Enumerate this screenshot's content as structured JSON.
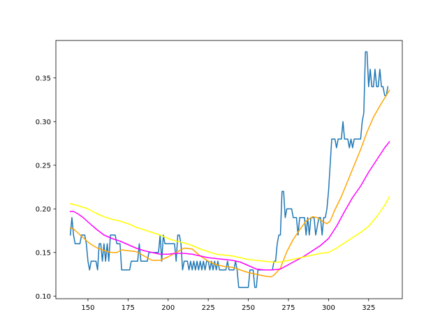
{
  "chart_data": {
    "type": "line",
    "title": "",
    "xlabel": "",
    "ylabel": "",
    "xlim": [
      130,
      346
    ],
    "ylim": [
      0.097,
      0.393
    ],
    "grid": false,
    "x_ticks": [
      150,
      175,
      200,
      225,
      250,
      275,
      300,
      325
    ],
    "y_ticks": [
      0.1,
      0.15,
      0.2,
      0.25,
      0.3,
      0.35
    ],
    "series": [
      {
        "color": "#1f77b4",
        "points": [
          [
            139,
            0.17
          ],
          [
            140,
            0.19
          ],
          [
            141,
            0.17
          ],
          [
            142,
            0.16
          ],
          [
            144,
            0.16
          ],
          [
            145,
            0.16
          ],
          [
            146,
            0.17
          ],
          [
            148,
            0.17
          ],
          [
            149,
            0.16
          ],
          [
            150,
            0.14
          ],
          [
            151,
            0.13
          ],
          [
            152,
            0.14
          ],
          [
            154,
            0.14
          ],
          [
            155,
            0.14
          ],
          [
            156,
            0.13
          ],
          [
            157,
            0.16
          ],
          [
            158,
            0.16
          ],
          [
            159,
            0.14
          ],
          [
            160,
            0.16
          ],
          [
            161,
            0.14
          ],
          [
            162,
            0.16
          ],
          [
            163,
            0.14
          ],
          [
            164,
            0.17
          ],
          [
            166,
            0.17
          ],
          [
            167,
            0.17
          ],
          [
            168,
            0.16
          ],
          [
            170,
            0.16
          ],
          [
            171,
            0.13
          ],
          [
            175,
            0.13
          ],
          [
            176,
            0.13
          ],
          [
            177,
            0.14
          ],
          [
            181,
            0.14
          ],
          [
            182,
            0.16
          ],
          [
            183,
            0.14
          ],
          [
            186,
            0.14
          ],
          [
            187,
            0.14
          ],
          [
            188,
            0.15
          ],
          [
            192,
            0.15
          ],
          [
            194,
            0.15
          ],
          [
            195,
            0.17
          ],
          [
            196,
            0.14
          ],
          [
            197,
            0.17
          ],
          [
            198,
            0.16
          ],
          [
            204,
            0.16
          ],
          [
            205,
            0.14
          ],
          [
            206,
            0.17
          ],
          [
            207,
            0.17
          ],
          [
            208,
            0.16
          ],
          [
            209,
            0.13
          ],
          [
            210,
            0.14
          ],
          [
            212,
            0.14
          ],
          [
            213,
            0.13
          ],
          [
            214,
            0.14
          ],
          [
            215,
            0.13
          ],
          [
            216,
            0.14
          ],
          [
            217,
            0.13
          ],
          [
            218,
            0.14
          ],
          [
            219,
            0.13
          ],
          [
            220,
            0.14
          ],
          [
            221,
            0.13
          ],
          [
            222,
            0.14
          ],
          [
            223,
            0.13
          ],
          [
            224,
            0.14
          ],
          [
            225,
            0.14
          ],
          [
            226,
            0.13
          ],
          [
            227,
            0.14
          ],
          [
            228,
            0.13
          ],
          [
            229,
            0.14
          ],
          [
            230,
            0.13
          ],
          [
            231,
            0.14
          ],
          [
            232,
            0.13
          ],
          [
            236,
            0.13
          ],
          [
            237,
            0.14
          ],
          [
            238,
            0.13
          ],
          [
            241,
            0.13
          ],
          [
            242,
            0.14
          ],
          [
            243,
            0.13
          ],
          [
            244,
            0.11
          ],
          [
            250,
            0.11
          ],
          [
            251,
            0.13
          ],
          [
            253,
            0.13
          ],
          [
            254,
            0.11
          ],
          [
            255,
            0.11
          ],
          [
            256,
            0.13
          ],
          [
            265,
            0.13
          ],
          [
            266,
            0.14
          ],
          [
            267,
            0.14
          ],
          [
            268,
            0.16
          ],
          [
            269,
            0.17
          ],
          [
            270,
            0.17
          ],
          [
            271,
            0.22
          ],
          [
            272,
            0.22
          ],
          [
            273,
            0.19
          ],
          [
            274,
            0.2
          ],
          [
            277,
            0.2
          ],
          [
            278,
            0.19
          ],
          [
            280,
            0.19
          ],
          [
            281,
            0.17
          ],
          [
            282,
            0.19
          ],
          [
            285,
            0.19
          ],
          [
            286,
            0.17
          ],
          [
            287,
            0.19
          ],
          [
            288,
            0.17
          ],
          [
            289,
            0.19
          ],
          [
            291,
            0.19
          ],
          [
            292,
            0.17
          ],
          [
            294,
            0.19
          ],
          [
            295,
            0.19
          ],
          [
            296,
            0.17
          ],
          [
            297,
            0.19
          ],
          [
            298,
            0.19
          ],
          [
            299,
            0.2
          ],
          [
            300,
            0.22
          ],
          [
            301,
            0.25
          ],
          [
            302,
            0.28
          ],
          [
            304,
            0.28
          ],
          [
            305,
            0.27
          ],
          [
            306,
            0.28
          ],
          [
            307,
            0.28
          ],
          [
            308,
            0.28
          ],
          [
            309,
            0.3
          ],
          [
            310,
            0.28
          ],
          [
            312,
            0.28
          ],
          [
            313,
            0.27
          ],
          [
            314,
            0.28
          ],
          [
            315,
            0.27
          ],
          [
            316,
            0.28
          ],
          [
            320,
            0.28
          ],
          [
            321,
            0.3
          ],
          [
            322,
            0.31
          ],
          [
            323,
            0.38
          ],
          [
            324,
            0.38
          ],
          [
            325,
            0.34
          ],
          [
            326,
            0.36
          ],
          [
            327,
            0.34
          ],
          [
            328,
            0.34
          ],
          [
            329,
            0.36
          ],
          [
            330,
            0.34
          ],
          [
            331,
            0.34
          ],
          [
            332,
            0.36
          ],
          [
            333,
            0.34
          ],
          [
            334,
            0.34
          ],
          [
            335,
            0.33
          ],
          [
            336,
            0.33
          ],
          [
            337,
            0.34
          ]
        ]
      },
      {
        "color": "#ffa500",
        "points": [
          [
            139,
            0.178
          ],
          [
            141,
            0.177
          ],
          [
            144,
            0.172
          ],
          [
            147,
            0.167
          ],
          [
            150,
            0.162
          ],
          [
            153,
            0.158
          ],
          [
            156,
            0.155
          ],
          [
            159,
            0.153
          ],
          [
            162,
            0.151
          ],
          [
            165,
            0.15
          ],
          [
            168,
            0.15
          ],
          [
            171,
            0.153
          ],
          [
            175,
            0.152
          ],
          [
            180,
            0.151
          ],
          [
            185,
            0.146
          ],
          [
            190,
            0.141
          ],
          [
            195,
            0.141
          ],
          [
            200,
            0.145
          ],
          [
            205,
            0.15
          ],
          [
            210,
            0.155
          ],
          [
            215,
            0.154
          ],
          [
            220,
            0.146
          ],
          [
            225,
            0.14
          ],
          [
            230,
            0.136
          ],
          [
            235,
            0.134
          ],
          [
            240,
            0.133
          ],
          [
            245,
            0.13
          ],
          [
            250,
            0.127
          ],
          [
            255,
            0.125
          ],
          [
            260,
            0.123
          ],
          [
            264,
            0.122
          ],
          [
            266,
            0.124
          ],
          [
            270,
            0.132
          ],
          [
            274,
            0.151
          ],
          [
            278,
            0.165
          ],
          [
            282,
            0.176
          ],
          [
            286,
            0.186
          ],
          [
            290,
            0.191
          ],
          [
            293,
            0.19
          ],
          [
            296,
            0.186
          ],
          [
            299,
            0.183
          ],
          [
            301,
            0.186
          ],
          [
            304,
            0.199
          ],
          [
            308,
            0.214
          ],
          [
            312,
            0.232
          ],
          [
            316,
            0.25
          ],
          [
            320,
            0.268
          ],
          [
            324,
            0.288
          ],
          [
            328,
            0.305
          ],
          [
            332,
            0.318
          ],
          [
            336,
            0.33
          ],
          [
            338,
            0.336
          ]
        ]
      },
      {
        "color": "#ff00ff",
        "points": [
          [
            139,
            0.197
          ],
          [
            141,
            0.197
          ],
          [
            144,
            0.194
          ],
          [
            147,
            0.19
          ],
          [
            150,
            0.185
          ],
          [
            155,
            0.177
          ],
          [
            160,
            0.17
          ],
          [
            165,
            0.166
          ],
          [
            170,
            0.163
          ],
          [
            175,
            0.159
          ],
          [
            180,
            0.155
          ],
          [
            185,
            0.152
          ],
          [
            190,
            0.15
          ],
          [
            195,
            0.148
          ],
          [
            200,
            0.148
          ],
          [
            205,
            0.149
          ],
          [
            210,
            0.149
          ],
          [
            215,
            0.148
          ],
          [
            220,
            0.146
          ],
          [
            225,
            0.144
          ],
          [
            230,
            0.143
          ],
          [
            235,
            0.142
          ],
          [
            240,
            0.141
          ],
          [
            245,
            0.139
          ],
          [
            250,
            0.135
          ],
          [
            255,
            0.131
          ],
          [
            260,
            0.13
          ],
          [
            265,
            0.13
          ],
          [
            270,
            0.131
          ],
          [
            275,
            0.136
          ],
          [
            280,
            0.141
          ],
          [
            285,
            0.146
          ],
          [
            290,
            0.152
          ],
          [
            295,
            0.158
          ],
          [
            300,
            0.166
          ],
          [
            305,
            0.18
          ],
          [
            310,
            0.197
          ],
          [
            315,
            0.213
          ],
          [
            320,
            0.226
          ],
          [
            325,
            0.242
          ],
          [
            330,
            0.256
          ],
          [
            335,
            0.27
          ],
          [
            338,
            0.277
          ]
        ]
      },
      {
        "color": "#ffff00",
        "points": [
          [
            139,
            0.206
          ],
          [
            141,
            0.205
          ],
          [
            145,
            0.203
          ],
          [
            150,
            0.2
          ],
          [
            155,
            0.195
          ],
          [
            160,
            0.191
          ],
          [
            165,
            0.188
          ],
          [
            170,
            0.186
          ],
          [
            175,
            0.183
          ],
          [
            180,
            0.179
          ],
          [
            185,
            0.176
          ],
          [
            190,
            0.173
          ],
          [
            195,
            0.17
          ],
          [
            200,
            0.166
          ],
          [
            205,
            0.163
          ],
          [
            210,
            0.161
          ],
          [
            215,
            0.158
          ],
          [
            220,
            0.154
          ],
          [
            225,
            0.151
          ],
          [
            230,
            0.148
          ],
          [
            235,
            0.147
          ],
          [
            240,
            0.146
          ],
          [
            245,
            0.144
          ],
          [
            250,
            0.142
          ],
          [
            255,
            0.141
          ],
          [
            260,
            0.14
          ],
          [
            265,
            0.139
          ],
          [
            270,
            0.139
          ],
          [
            275,
            0.141
          ],
          [
            280,
            0.143
          ],
          [
            285,
            0.145
          ],
          [
            290,
            0.147
          ],
          [
            295,
            0.149
          ],
          [
            300,
            0.15
          ],
          [
            305,
            0.155
          ],
          [
            310,
            0.161
          ],
          [
            315,
            0.167
          ],
          [
            320,
            0.173
          ],
          [
            325,
            0.18
          ],
          [
            330,
            0.191
          ],
          [
            335,
            0.204
          ],
          [
            338,
            0.214
          ]
        ]
      }
    ]
  }
}
